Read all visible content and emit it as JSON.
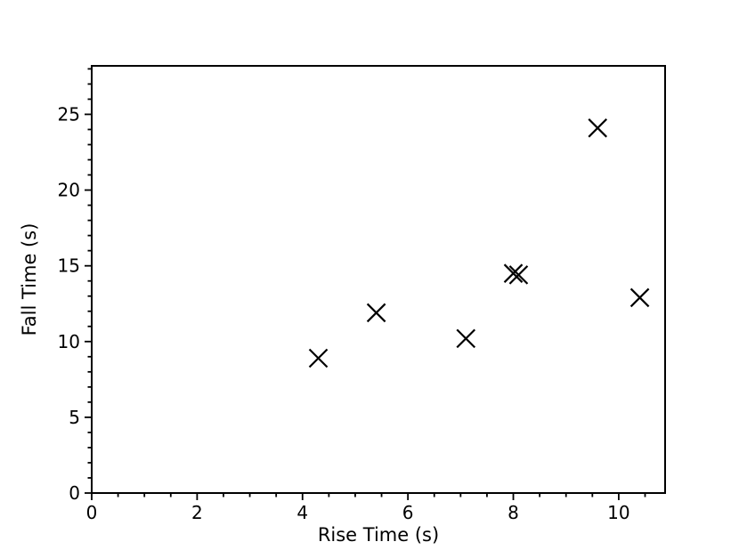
{
  "chart_data": {
    "type": "scatter",
    "title": "",
    "xlabel": "Rise Time (s)",
    "ylabel": "Fall Time (s)",
    "points": [
      {
        "x": 4.3,
        "y": 8.9
      },
      {
        "x": 5.4,
        "y": 11.9
      },
      {
        "x": 7.1,
        "y": 10.2
      },
      {
        "x": 8.0,
        "y": 14.5
      },
      {
        "x": 8.1,
        "y": 14.4
      },
      {
        "x": 9.6,
        "y": 24.1
      },
      {
        "x": 10.4,
        "y": 12.9
      }
    ],
    "marker": "x",
    "marker_color": "#000000",
    "axis_color": "#000000",
    "background_color": "#ffffff",
    "xlim": [
      0,
      10.88
    ],
    "ylim": [
      0,
      28.2
    ],
    "x_major_ticks": [
      0,
      2,
      4,
      6,
      8,
      10
    ],
    "y_major_ticks": [
      0,
      5,
      10,
      15,
      20,
      25
    ],
    "x_tick_labels": [
      "0",
      "2",
      "4",
      "6",
      "8",
      "10"
    ],
    "y_tick_labels": [
      "0",
      "5",
      "10",
      "15",
      "20",
      "25"
    ],
    "x_minor_step": 0.5,
    "y_minor_step": 1,
    "grid": false,
    "legend": "none",
    "tick_direction": "out"
  }
}
